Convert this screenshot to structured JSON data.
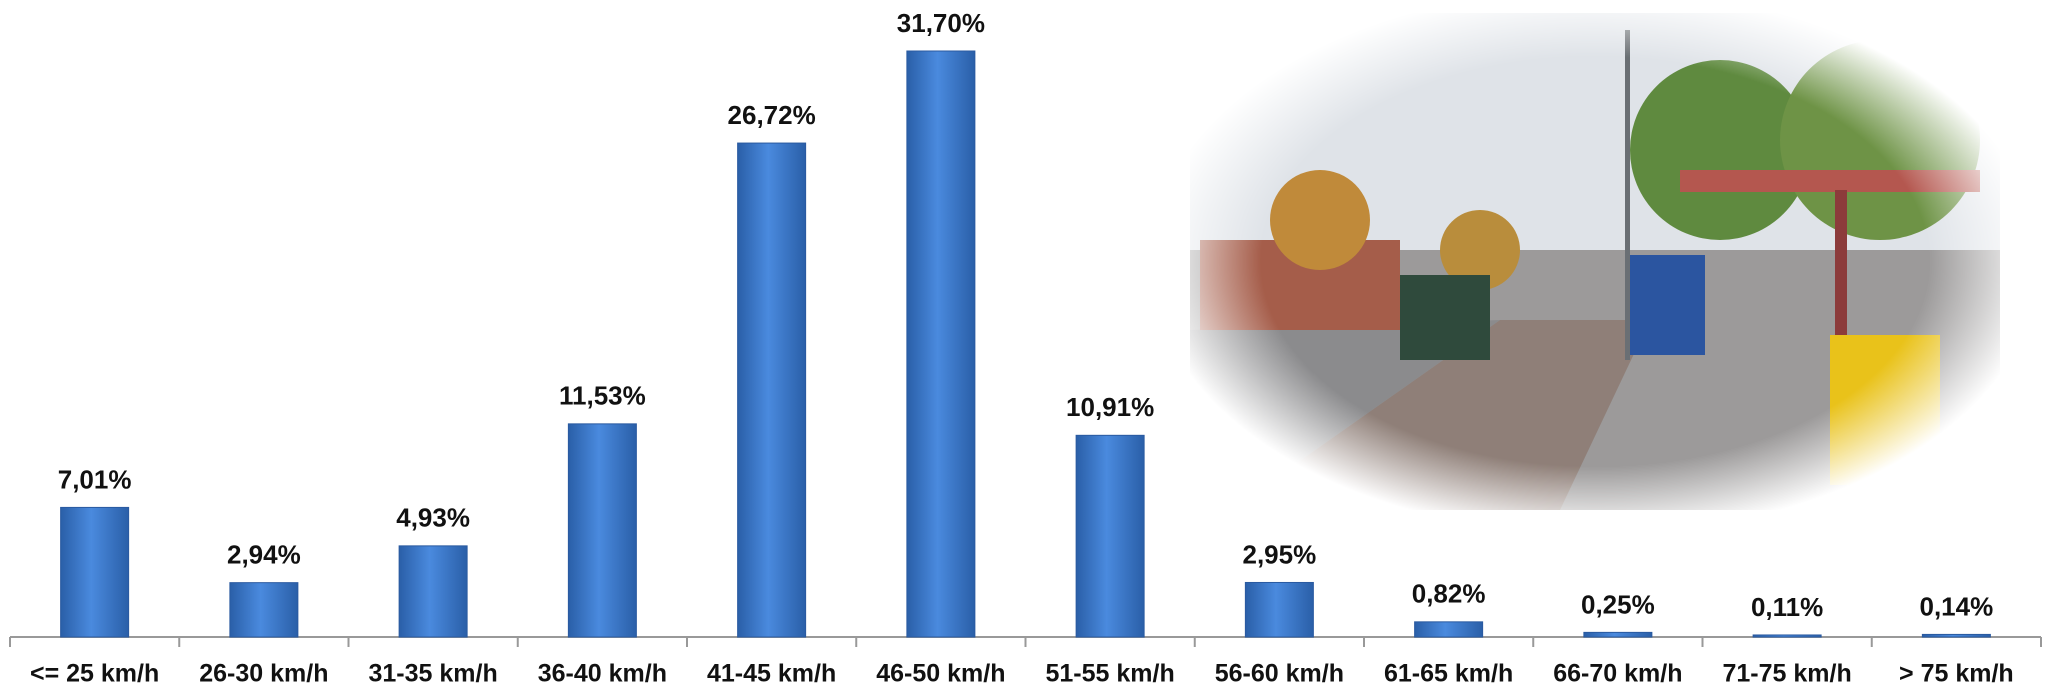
{
  "chart_data": {
    "type": "bar",
    "categories": [
      "<= 25 km/h",
      "26-30 km/h",
      "31-35 km/h",
      "36-40 km/h",
      "41-45 km/h",
      "46-50 km/h",
      "51-55 km/h",
      "56-60 km/h",
      "61-65 km/h",
      "66-70 km/h",
      "71-75 km/h",
      "> 75 km/h"
    ],
    "values": [
      7.01,
      2.94,
      4.93,
      11.53,
      26.72,
      31.7,
      10.91,
      2.95,
      0.82,
      0.25,
      0.11,
      0.14
    ],
    "value_labels": [
      "7,01%",
      "2,94%",
      "4,93%",
      "11,53%",
      "26,72%",
      "31,70%",
      "10,91%",
      "2,95%",
      "0,82%",
      "0,25%",
      "0,11%",
      "0,14%"
    ],
    "color": "#3a78c9"
  }
}
